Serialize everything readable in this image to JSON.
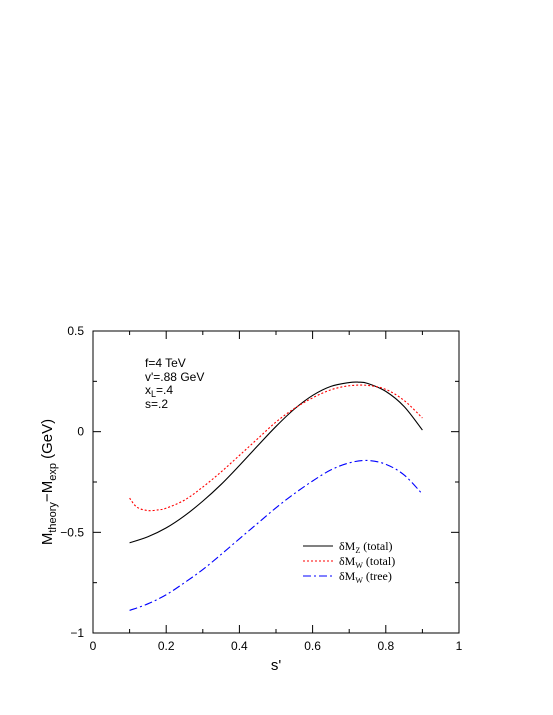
{
  "chart_data": {
    "type": "line",
    "title": "",
    "xlabel": "s'",
    "ylabel_parts": {
      "main": "M",
      "sub1": "theory",
      "mid": "−M",
      "sub2": "exp",
      "unit": " (GeV)"
    },
    "xlim": [
      0,
      1
    ],
    "ylim": [
      -1,
      0.5
    ],
    "x_ticks": [
      0,
      0.2,
      0.4,
      0.6,
      0.8,
      1
    ],
    "x_tick_labels": [
      "0",
      "0.2",
      "0.4",
      "0.6",
      "0.8",
      "1"
    ],
    "y_ticks": [
      -1,
      -0.5,
      0,
      0.5
    ],
    "y_tick_labels": [
      "−1",
      "−0.5",
      "0",
      "0.5"
    ],
    "grid": false,
    "legend_placement": "lower-right",
    "annotations": [
      "f=4 TeV",
      "v'=.88 GeV",
      "x",
      "L",
      "=.4",
      "s=.2"
    ],
    "series": [
      {
        "name": "δM",
        "name_sub": "Z",
        "name_suffix": " (total)",
        "color": "#000000",
        "dash": "",
        "x": [
          0.1,
          0.15,
          0.2,
          0.25,
          0.3,
          0.35,
          0.4,
          0.45,
          0.5,
          0.55,
          0.6,
          0.65,
          0.7,
          0.725,
          0.75,
          0.8,
          0.85,
          0.9
        ],
        "y": [
          -0.552,
          -0.522,
          -0.478,
          -0.418,
          -0.345,
          -0.262,
          -0.168,
          -0.07,
          0.026,
          0.112,
          0.18,
          0.225,
          0.244,
          0.246,
          0.24,
          0.2,
          0.125,
          0.008
        ]
      },
      {
        "name": "δM",
        "name_sub": "W",
        "name_suffix": " (total)",
        "color": "#ff0000",
        "dash": "2,2",
        "x": [
          0.1,
          0.12,
          0.15,
          0.18,
          0.2,
          0.25,
          0.3,
          0.35,
          0.4,
          0.45,
          0.5,
          0.55,
          0.6,
          0.65,
          0.7,
          0.75,
          0.8,
          0.85,
          0.9
        ],
        "y": [
          -0.33,
          -0.375,
          -0.392,
          -0.388,
          -0.38,
          -0.34,
          -0.275,
          -0.2,
          -0.118,
          -0.035,
          0.048,
          0.115,
          0.168,
          0.208,
          0.228,
          0.23,
          0.21,
          0.155,
          0.068
        ]
      },
      {
        "name": "δM",
        "name_sub": "W",
        "name_suffix": " (tree)",
        "color": "#0000ff",
        "dash": "8,3,2,3",
        "x": [
          0.1,
          0.15,
          0.2,
          0.25,
          0.3,
          0.35,
          0.4,
          0.45,
          0.5,
          0.55,
          0.6,
          0.65,
          0.7,
          0.75,
          0.8,
          0.85,
          0.9
        ],
        "y": [
          -0.888,
          -0.855,
          -0.81,
          -0.75,
          -0.685,
          -0.61,
          -0.532,
          -0.455,
          -0.378,
          -0.308,
          -0.245,
          -0.19,
          -0.155,
          -0.143,
          -0.162,
          -0.215,
          -0.31
        ]
      }
    ]
  }
}
